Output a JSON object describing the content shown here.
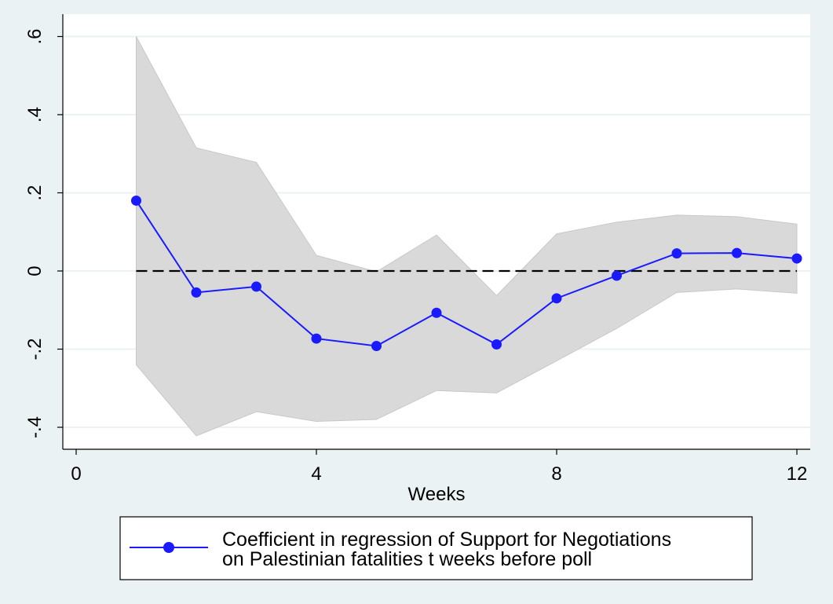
{
  "chart_data": {
    "type": "line",
    "xlabel": "Weeks",
    "ylabel": "",
    "xlim": [
      0,
      12
    ],
    "ylim": [
      -0.45,
      0.6
    ],
    "x_ticks": [
      0,
      4,
      8,
      12
    ],
    "x_tick_labels": [
      "0",
      "4",
      "8",
      "12"
    ],
    "y_ticks": [
      -0.4,
      -0.2,
      0,
      0.2,
      0.4,
      0.6
    ],
    "y_tick_labels": [
      "-.4",
      "-.2",
      "0",
      ".2",
      ".4",
      ".6"
    ],
    "grid": true,
    "reference_line": {
      "y": 0,
      "style": "dashed"
    },
    "x": [
      1,
      2,
      3,
      4,
      5,
      6,
      7,
      8,
      9,
      10,
      11,
      12
    ],
    "series": [
      {
        "name": "Coefficient in regression of Support for Negotiations on Palestinian fatalities t weeks before poll",
        "values": [
          0.18,
          -0.055,
          -0.04,
          -0.173,
          -0.192,
          -0.107,
          -0.188,
          -0.07,
          -0.012,
          0.045,
          0.046,
          0.032
        ],
        "lower": [
          -0.24,
          -0.422,
          -0.36,
          -0.385,
          -0.38,
          -0.306,
          -0.312,
          -0.23,
          -0.147,
          -0.055,
          -0.046,
          -0.057
        ],
        "upper": [
          0.6,
          0.315,
          0.278,
          0.04,
          -0.002,
          0.092,
          -0.063,
          0.095,
          0.125,
          0.143,
          0.139,
          0.12
        ]
      }
    ],
    "legend": {
      "placement": "bottom",
      "lines": [
        "Coefficient in regression of Support for Negotiations",
        "on Palestinian fatalities t weeks before poll"
      ]
    },
    "colors": {
      "background": "#eaf2f3",
      "plot_background": "#ffffff",
      "gridline": "#eaf2f3",
      "ci_band": "#d9d9d9",
      "series": "#1a1aff",
      "reference": "#000000"
    }
  }
}
